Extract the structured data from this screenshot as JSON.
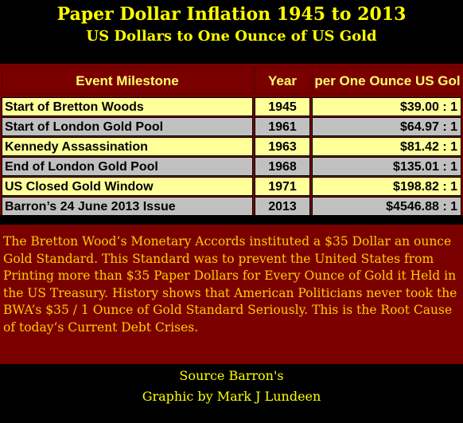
{
  "title": "Paper Dollar Inflation 1945 to 2013",
  "subtitle": "US Dollars to One Ounce of US Gold",
  "table": {
    "headers": [
      "Event Milestone",
      "Year",
      "Dollars per One Ounce US Gold"
    ],
    "rows": [
      {
        "event": "Start of Bretton Woods",
        "year": "1945",
        "ratio": "$39.00 : 1"
      },
      {
        "event": "Start of London Gold Pool",
        "year": "1961",
        "ratio": "$64.97 : 1"
      },
      {
        "event": "Kennedy Assassination",
        "year": "1963",
        "ratio": "$81.42 : 1"
      },
      {
        "event": "End of London Gold Pool",
        "year": "1968",
        "ratio": "$135.01 : 1"
      },
      {
        "event": "US Closed Gold Window",
        "year": "1971",
        "ratio": "$198.82 : 1"
      },
      {
        "event": "Barron’s 24 June  2013 Issue",
        "year": "2013",
        "ratio": "$4546.88 : 1"
      }
    ]
  },
  "description": "The Bretton Wood’s Monetary Accords instituted a $35 Dollar an ounce Gold Standard.  This Standard was to prevent the United States from Printing more than $35 Paper Dollars for Every Ounce of Gold it Held in the US Treasury. History shows that American Politicians never took the BWA’s $35 / 1 Ounce of Gold Standard Seriously.  This is the Root Cause of today’s Current Debt Crises.",
  "source": "Source Barron's",
  "credit": "Graphic by Mark J Lundeen",
  "colors": {
    "title": "#ffff00",
    "table_bg": "#7a0000",
    "row_light": "#ffff99",
    "row_gray": "#c0c0c0",
    "desc_text": "#ffcc00"
  }
}
